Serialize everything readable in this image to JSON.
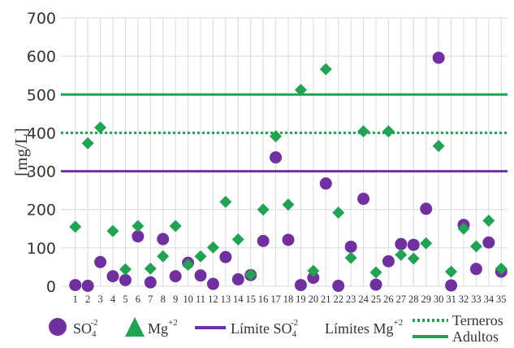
{
  "chart_data": {
    "type": "scatter",
    "title": "",
    "ylabel": "[mg/L]",
    "xlabel": "",
    "ylim": [
      0,
      700
    ],
    "yticks": [
      0,
      100,
      200,
      300,
      400,
      500,
      600,
      700
    ],
    "x": [
      1,
      2,
      3,
      4,
      5,
      6,
      7,
      8,
      9,
      10,
      11,
      12,
      13,
      14,
      15,
      16,
      17,
      18,
      19,
      20,
      21,
      22,
      23,
      24,
      25,
      26,
      27,
      28,
      29,
      30,
      31,
      32,
      33,
      34,
      35
    ],
    "grid": "vertical and horizontal",
    "legend_position": "bottom",
    "series": [
      {
        "name": "SO4-2",
        "marker": "circle",
        "color": "#7030a0",
        "values": [
          3,
          1,
          63,
          26,
          16,
          130,
          10,
          123,
          26,
          61,
          28,
          6,
          76,
          18,
          29,
          118,
          336,
          121,
          3,
          22,
          268,
          1,
          103,
          228,
          4,
          65,
          110,
          108,
          202,
          596,
          2,
          160,
          45,
          114,
          38
        ]
      },
      {
        "name": "Mg+2",
        "marker": "diamond",
        "color": "#21a353",
        "values": [
          155,
          373,
          414,
          144,
          44,
          157,
          46,
          78,
          157,
          56,
          78,
          101,
          220,
          122,
          30,
          200,
          391,
          213,
          512,
          40,
          566,
          192,
          74,
          404,
          36,
          404,
          82,
          72,
          112,
          366,
          38,
          150,
          104,
          171,
          46
        ]
      }
    ],
    "reference_lines": [
      {
        "name": "Límite SO4-2",
        "value": 300,
        "style": "solid",
        "color": "#7030a0"
      },
      {
        "name": "Terneros",
        "value": 400,
        "style": "dotted",
        "color": "#21a353"
      },
      {
        "name": "Adultos",
        "value": 500,
        "style": "solid",
        "color": "#21a353"
      }
    ],
    "legend": {
      "so4_label": "SO",
      "so4_sub": "4",
      "so4_sup": "-2",
      "mg_label": "Mg",
      "mg_sup": "+2",
      "limite_so4_label": "Límite SO",
      "limite_so4_sub": "4",
      "limite_so4_sup": "-2",
      "limites_mg_label": "Límites Mg",
      "limites_mg_sup": "+2",
      "terneros_label": "Terneros",
      "adultos_label": "Adultos"
    }
  }
}
